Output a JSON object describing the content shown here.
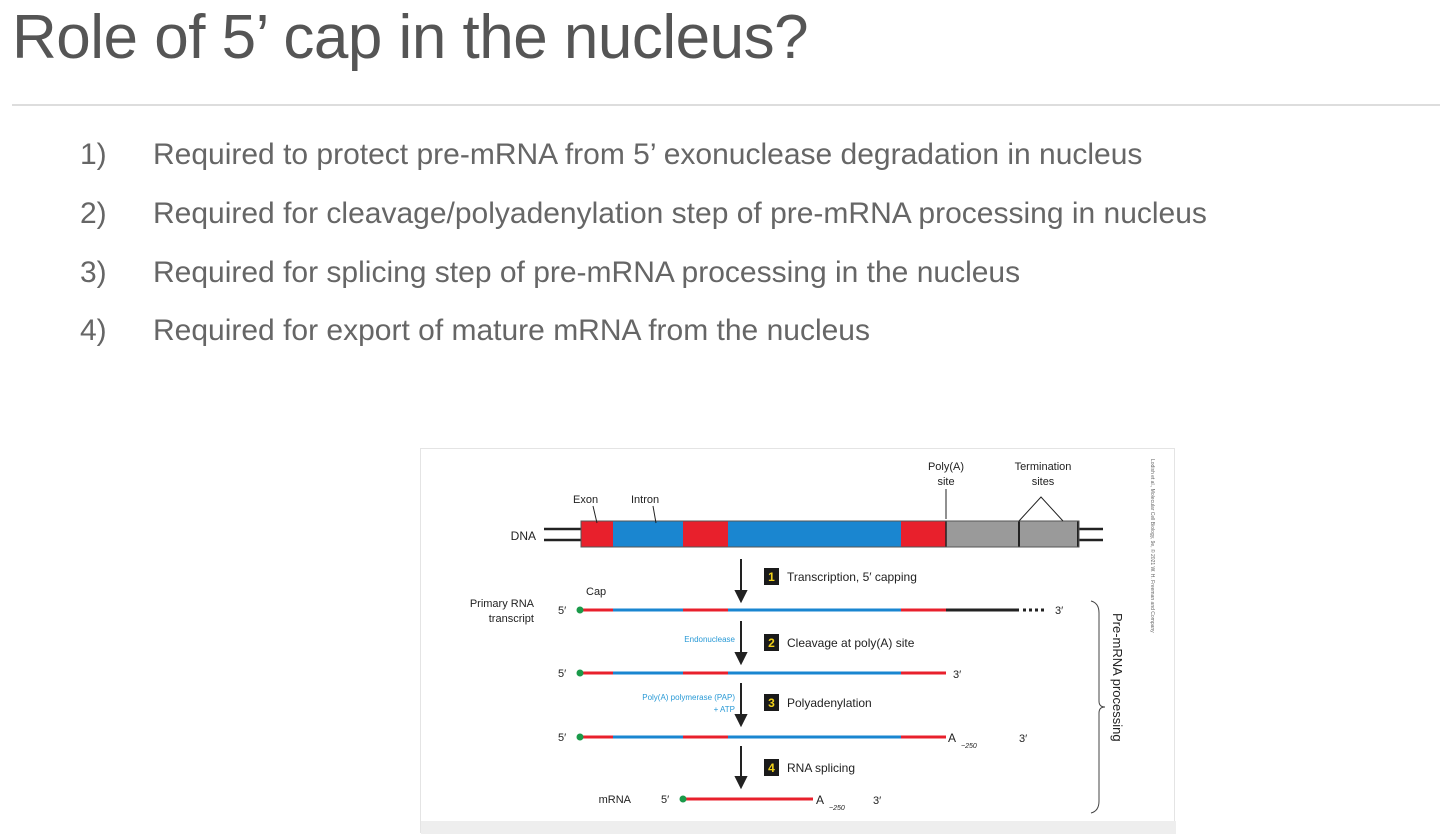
{
  "slide": {
    "title": "Role of 5’ cap in the nucleus?",
    "items": [
      {
        "number": "1)",
        "text": "Required to protect pre-mRNA from 5’ exonuclease degradation in nucleus"
      },
      {
        "number": "2)",
        "text": "Required for cleavage/polyadenylation step of pre-mRNA processing in nucleus"
      },
      {
        "number": "3)",
        "text": "Required for splicing step of pre-mRNA processing in the nucleus"
      },
      {
        "number": "4)",
        "text": "Required for export of mature mRNA from the nucleus"
      }
    ]
  },
  "figure": {
    "labels": {
      "dna": "DNA",
      "exon": "Exon",
      "intron": "Intron",
      "polya_site_1": "Poly(A)",
      "polya_site_2": "site",
      "termination_1": "Termination",
      "termination_2": "sites",
      "cap": "Cap",
      "primary_1": "Primary RNA",
      "primary_2": "transcript",
      "mrna": "mRNA",
      "five_prime": "5′",
      "three_prime": "3′",
      "poly_a": "A",
      "poly_a_length": "~250",
      "endonuclease": "Endonuclease",
      "pap_1": "Poly(A) polymerase (PAP)",
      "pap_2": "+ ATP",
      "bracket": "Pre-mRNA processing",
      "copyright": "Lodish et al., Molecular Cell Biology, 9e, © 2021 W. H. Freeman and Company"
    },
    "steps": [
      {
        "number": "1",
        "label": "Transcription, 5′ capping"
      },
      {
        "number": "2",
        "label": "Cleavage at poly(A) site"
      },
      {
        "number": "3",
        "label": "Polyadenylation"
      },
      {
        "number": "4",
        "label": "RNA splicing"
      }
    ],
    "colors": {
      "exon": "#e8202c",
      "intron": "#1a86d0",
      "noncoding": "#9a9a9a",
      "cap": "#1a9a4a",
      "enzyme": "#2a9ad6",
      "step_box": "#1a1a1a",
      "step_number": "#f2d21a"
    }
  }
}
